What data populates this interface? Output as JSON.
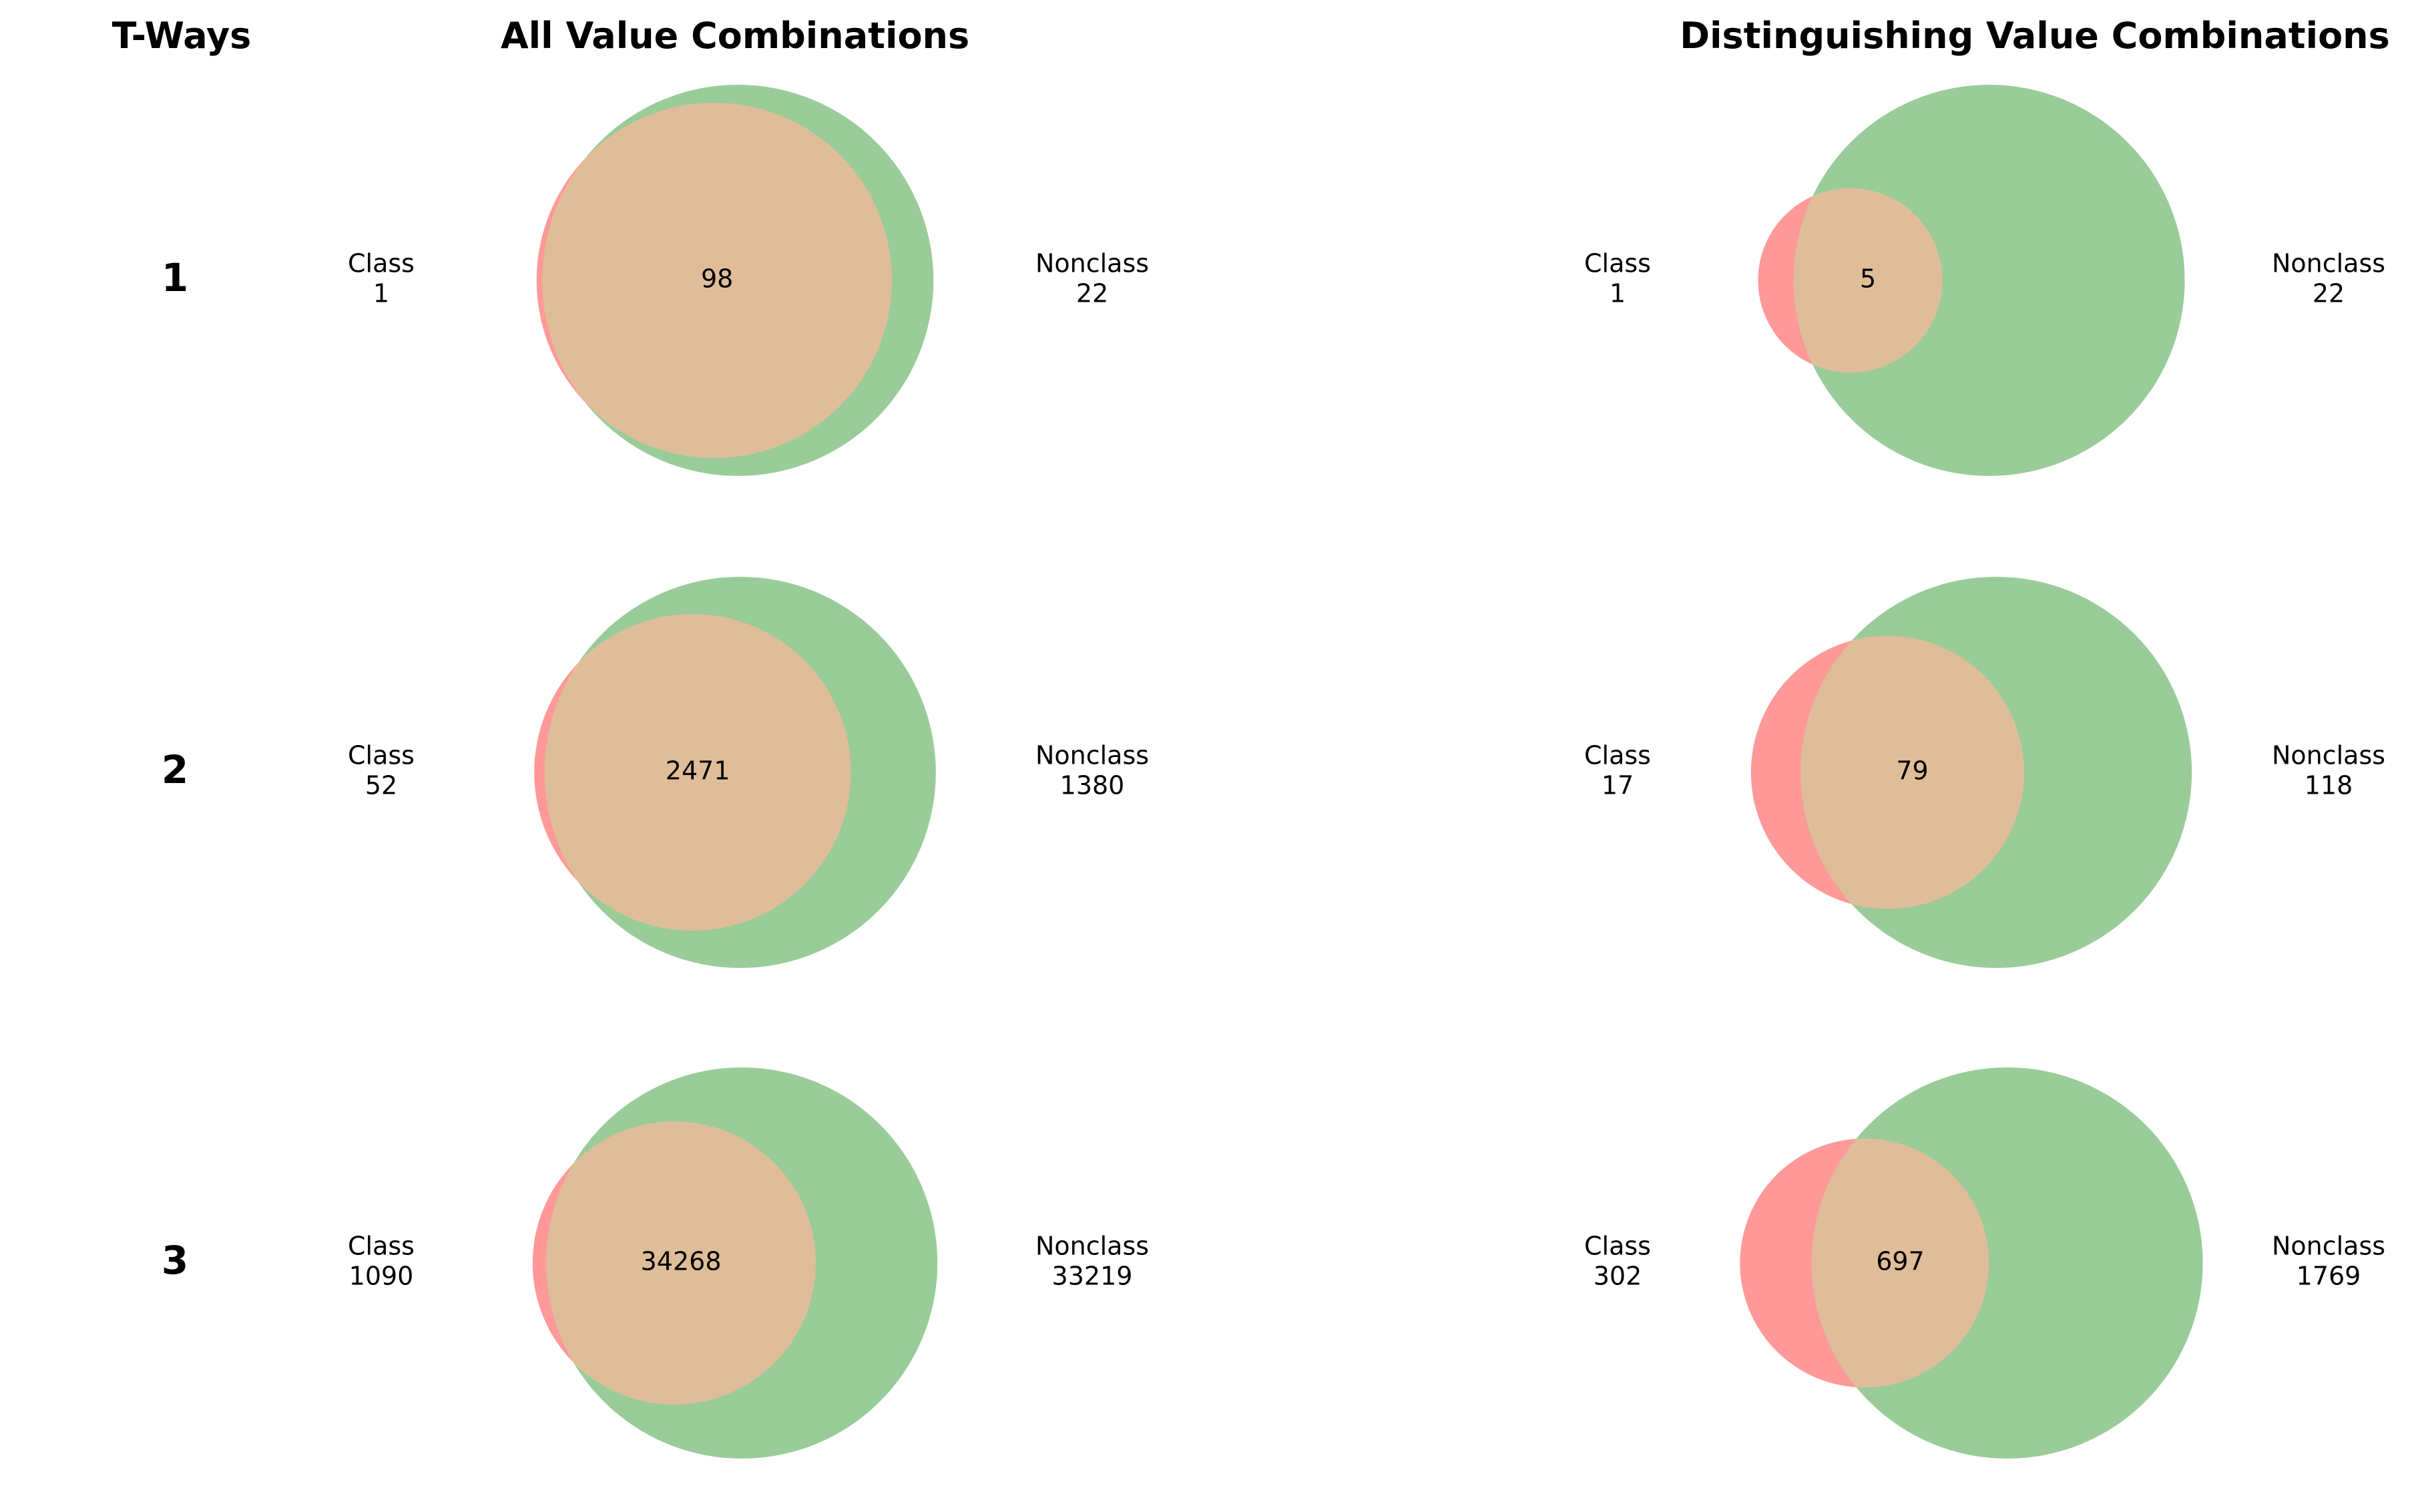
{
  "headers": {
    "tways": "T-Ways",
    "all": "All Value Combinations",
    "distinguishing": "Distinguishing Value Combinations"
  },
  "labels": {
    "class": "Class",
    "nonclass": "Nonclass"
  },
  "colors": {
    "class_only": "#ff9999",
    "nonclass_only": "#99cc99",
    "overlap": "#e0bd99",
    "text": "#000000"
  },
  "rows": [
    {
      "tway": "1",
      "all": {
        "class": 1,
        "nonclass": 22,
        "overlap": 98
      },
      "distinguishing": {
        "class": 1,
        "nonclass": 22,
        "overlap": 5
      }
    },
    {
      "tway": "2",
      "all": {
        "class": 52,
        "nonclass": 1380,
        "overlap": 2471
      },
      "distinguishing": {
        "class": 17,
        "nonclass": 118,
        "overlap": 79
      }
    },
    {
      "tway": "3",
      "all": {
        "class": 1090,
        "nonclass": 33219,
        "overlap": 34268
      },
      "distinguishing": {
        "class": 302,
        "nonclass": 1769,
        "overlap": 697
      }
    }
  ]
}
